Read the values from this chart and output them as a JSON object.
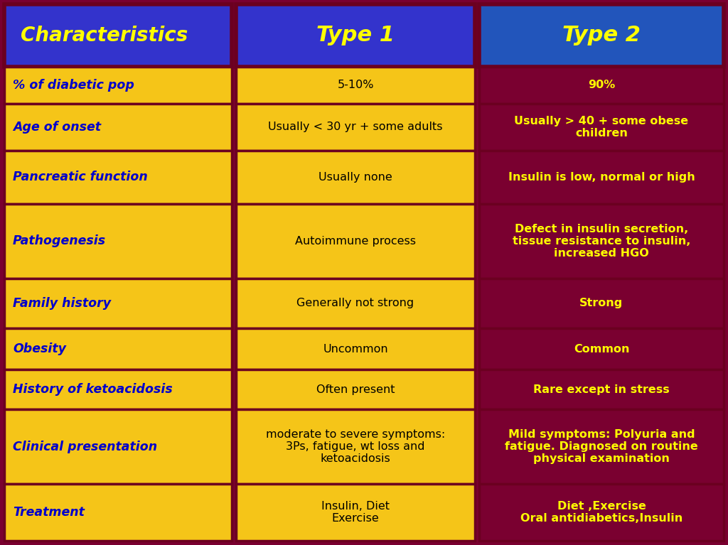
{
  "title_bg_col1": "#3333CC",
  "title_bg_col2": "#3333CC",
  "title_bg_col3": "#2255BB",
  "col1_bg": "#F5C518",
  "col2_bg": "#F5C518",
  "col3_bg": "#7A0030",
  "border_color": "#6B0020",
  "header_text_color": "#FFFF00",
  "col1_text_color": "#0000CC",
  "col2_text_color": "#000000",
  "col3_text_color": "#FFFF00",
  "fig_bg": "#7A0030",
  "headers": [
    "Characteristics",
    "Type 1",
    "Type 2"
  ],
  "rows": [
    {
      "char": "% of diabetic pop",
      "type1": "5-10%",
      "type2": "90%"
    },
    {
      "char": "Age of onset",
      "type1": "Usually < 30 yr + some adults",
      "type2": "Usually > 40 + some obese\nchildren"
    },
    {
      "char": "Pancreatic function",
      "type1": "Usually none",
      "type2": "Insulin is low, normal or high"
    },
    {
      "char": "Pathogenesis",
      "type1": "Autoimmune process",
      "type2": "Defect in insulin secretion,\ntissue resistance to insulin,\nincreased HGO"
    },
    {
      "char": "Family history",
      "type1": "Generally not strong",
      "type2": "Strong"
    },
    {
      "char": "Obesity",
      "type1": "Uncommon",
      "type2": "Common"
    },
    {
      "char": "History of ketoacidosis",
      "type1": "Often present",
      "type2": "Rare except in stress"
    },
    {
      "char": "Clinical presentation",
      "type1": "moderate to severe symptoms:\n3Ps, fatigue, wt loss and\nketoacidosis",
      "type2": "Mild symptoms: Polyuria and\nfatigue. Diagnosed on routine\nphysical examination"
    },
    {
      "char": "Treatment",
      "type1": "Insulin, Diet\nExercise",
      "type2": "Diet ,Exercise\nOral antidiabetics,Insulin"
    }
  ],
  "fig_width": 10.24,
  "fig_height": 7.67,
  "dpi": 100
}
